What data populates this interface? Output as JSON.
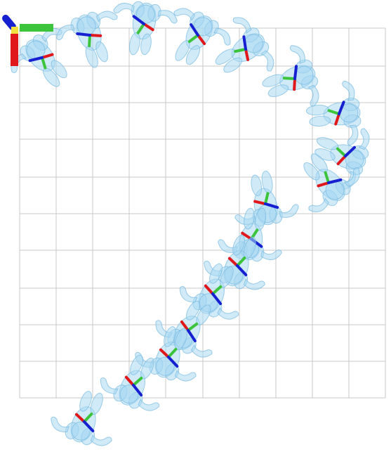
{
  "colors": {
    "background": "#ffffff",
    "grid": "#c8c8c8",
    "body_fill": "#a9d8f3",
    "body_stroke": "#78b9e0",
    "axis_x": "#e0181c",
    "axis_y": "#3cc43c",
    "axis_z": "#1620d0",
    "legend_yellow": "#f0e040"
  },
  "diagram": {
    "kind": "top-down human trajectory with per-frame orientation axes",
    "legend_icons": [
      "z-axis-icon",
      "y-axis-icon",
      "x-axis-icon"
    ],
    "frame_count": 20
  }
}
